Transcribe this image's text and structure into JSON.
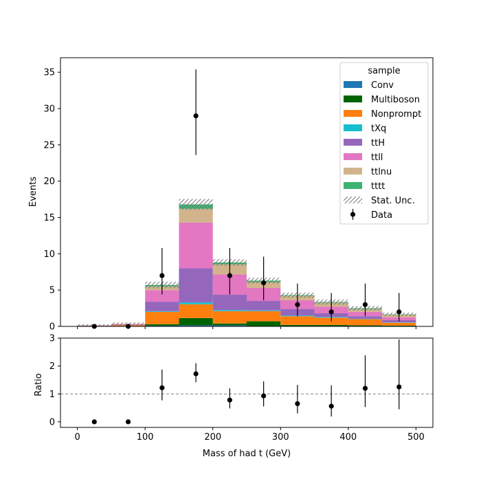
{
  "chart_data": [
    {
      "type": "bar",
      "stacked": true,
      "ylabel": "Events",
      "xlim": [
        -25,
        525
      ],
      "ylim": [
        0,
        37
      ],
      "x_ticks": [
        0,
        100,
        200,
        300,
        400,
        500
      ],
      "y_ticks": [
        0,
        5,
        10,
        15,
        20,
        25,
        30,
        35
      ],
      "bin_edges": [
        0,
        50,
        100,
        150,
        200,
        250,
        300,
        350,
        400,
        450,
        500
      ],
      "legend": {
        "title": "sample",
        "placement": "top-right"
      },
      "series": [
        {
          "name": "Conv",
          "color": "#1f77b4",
          "values": [
            0.0,
            0.0,
            0.1,
            0.15,
            0.15,
            0.05,
            0.05,
            0.05,
            0.05,
            0.0
          ]
        },
        {
          "name": "Multiboson",
          "color": "#006400",
          "values": [
            0.02,
            0.05,
            0.2,
            1.0,
            0.25,
            0.65,
            0.15,
            0.15,
            0.1,
            0.1
          ]
        },
        {
          "name": "Nonprompt",
          "color": "#ff7f0e",
          "values": [
            0.05,
            0.1,
            1.7,
            1.9,
            1.7,
            1.4,
            1.2,
            1.0,
            0.85,
            0.4
          ]
        },
        {
          "name": "tXq",
          "color": "#17becf",
          "values": [
            0.0,
            0.0,
            0.1,
            0.25,
            0.15,
            0.1,
            0.1,
            0.1,
            0.05,
            0.05
          ]
        },
        {
          "name": "ttH",
          "color": "#9467bd",
          "values": [
            0.03,
            0.08,
            1.3,
            4.7,
            2.1,
            1.3,
            0.9,
            0.5,
            0.35,
            0.3
          ]
        },
        {
          "name": "ttll",
          "color": "#e377c2",
          "values": [
            0.03,
            0.07,
            1.6,
            6.3,
            2.8,
            1.8,
            1.2,
            0.9,
            0.6,
            0.4
          ]
        },
        {
          "name": "ttlnu",
          "color": "#d2b48c",
          "values": [
            0.02,
            0.05,
            0.5,
            1.9,
            1.4,
            0.8,
            0.6,
            0.55,
            0.4,
            0.35
          ]
        },
        {
          "name": "tttt",
          "color": "#3cb371",
          "values": [
            0.0,
            0.0,
            0.2,
            0.6,
            0.25,
            0.2,
            0.1,
            0.1,
            0.1,
            0.05
          ]
        }
      ],
      "stat_unc": {
        "name": "Stat. Unc.",
        "values": [
          0.15,
          0.2,
          0.45,
          0.75,
          0.45,
          0.4,
          0.35,
          0.35,
          0.3,
          0.25
        ]
      },
      "data": {
        "name": "Data",
        "x": [
          25,
          75,
          125,
          175,
          225,
          275,
          325,
          375,
          425,
          475
        ],
        "y": [
          0,
          0,
          7,
          29,
          7,
          6,
          3,
          2,
          3,
          2
        ],
        "err_low": [
          0,
          0,
          2.6,
          5.4,
          2.6,
          2.4,
          1.6,
          1.3,
          1.6,
          1.3
        ],
        "err_high": [
          0,
          0,
          3.8,
          6.4,
          3.8,
          3.6,
          2.9,
          2.6,
          2.9,
          2.6
        ]
      }
    },
    {
      "type": "scatter",
      "xlabel": "Mass of had t (GeV)",
      "ylabel": "Ratio",
      "xlim": [
        -25,
        525
      ],
      "ylim": [
        -0.2,
        3
      ],
      "x_ticks": [
        0,
        100,
        200,
        300,
        400,
        500
      ],
      "y_ticks": [
        0,
        1,
        2,
        3
      ],
      "reference_line": 1,
      "x": [
        25,
        75,
        125,
        175,
        225,
        275,
        325,
        375,
        425,
        475
      ],
      "y": [
        0,
        0,
        1.22,
        1.72,
        0.78,
        0.93,
        0.65,
        0.56,
        1.2,
        1.25
      ],
      "err_low": [
        0,
        0,
        0.45,
        0.3,
        0.3,
        0.38,
        0.35,
        0.37,
        0.67,
        0.8
      ],
      "err_high": [
        0,
        0,
        0.65,
        0.38,
        0.42,
        0.52,
        0.67,
        0.75,
        1.18,
        1.7
      ]
    }
  ]
}
